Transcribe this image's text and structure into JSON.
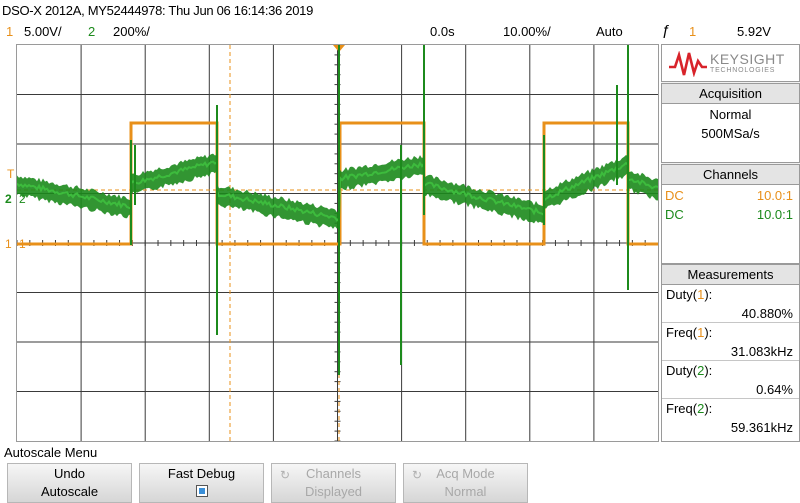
{
  "title": "DSO-X 2012A, MY52444978: Thu Jun 06 16:14:36 2019",
  "status": {
    "ch1_num": "1",
    "ch1_scale": "5.00V/",
    "ch2_num": "2",
    "ch2_scale": "200%/",
    "time_delay": "0.0s",
    "time_scale": "10.00%/",
    "trigger_mode": "Auto",
    "trigger_icon": "rising-edge-icon",
    "trigger_source": "1",
    "trigger_level": "5.92V"
  },
  "colors": {
    "ch1": "#e8901a",
    "ch2": "#1c8a1c",
    "grid": "#3a3a3a",
    "trigger": "#e8901a"
  },
  "markers": {
    "trigger_level_label": "T",
    "ch2_label": "2",
    "ch1_label": "1"
  },
  "logo": {
    "brand": "KEYSIGHT",
    "sub": "TECHNOLOGIES"
  },
  "acquisition": {
    "heading": "Acquisition",
    "mode": "Normal",
    "rate": "500MSa/s"
  },
  "channels": {
    "heading": "Channels",
    "rows": [
      {
        "coupling": "DC",
        "probe": "10.0:1"
      },
      {
        "coupling": "DC",
        "probe": "10.0:1"
      }
    ]
  },
  "measurements": {
    "heading": "Measurements",
    "items": [
      {
        "label": "Duty",
        "ch": "1",
        "value": "40.880%"
      },
      {
        "label": "Freq",
        "ch": "1",
        "value": "31.083kHz"
      },
      {
        "label": "Duty",
        "ch": "2",
        "value": "0.64%"
      },
      {
        "label": "Freq",
        "ch": "2",
        "value": "59.361kHz"
      }
    ]
  },
  "menu": {
    "title": "Autoscale Menu",
    "softkeys": [
      {
        "line1": "Undo",
        "line2": "Autoscale"
      },
      {
        "line1": "Fast Debug",
        "line2": ""
      },
      {
        "line1": "Channels",
        "line2": "Displayed"
      },
      {
        "line1": "Acq Mode",
        "line2": "Normal"
      }
    ]
  }
}
